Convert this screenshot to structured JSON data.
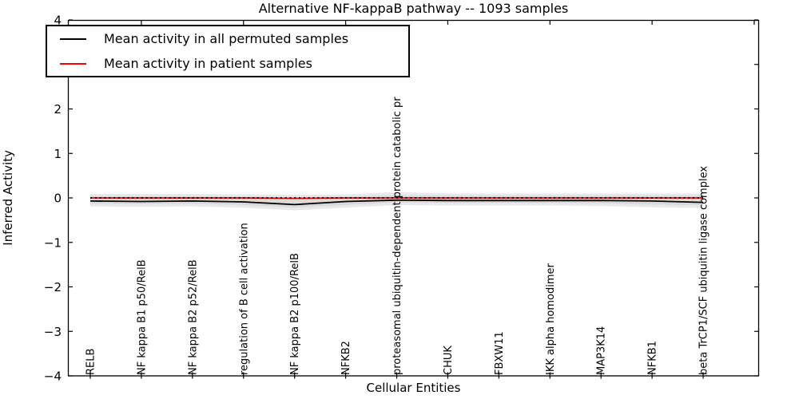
{
  "title": "Alternative NF-kappaB pathway -- 1093 samples",
  "legend": {
    "items": [
      {
        "label": "Mean activity in all permuted samples",
        "color": "#000000",
        "style": "solid"
      },
      {
        "label": "Mean activity in patient samples",
        "color": "#ff0000",
        "style": "solid"
      }
    ],
    "position": "upper left"
  },
  "axes": {
    "xlabel": "Cellular Entities",
    "ylabel": "Inferred Activity"
  },
  "chart_data": {
    "type": "line",
    "title": "Alternative NF-kappaB pathway -- 1093 samples",
    "xlabel": "Cellular Entities",
    "ylabel": "Inferred Activity",
    "ylim": [
      -4,
      4
    ],
    "yticks": [
      4,
      3,
      2,
      1,
      0,
      -1,
      -2,
      -3,
      -4
    ],
    "ytick_labels": [
      "4",
      "3",
      "2",
      "1",
      "0",
      "−1",
      "−2",
      "−3",
      "−4"
    ],
    "grid": false,
    "legend_position": "upper left",
    "categories": [
      "RELB",
      "NF kappa B1 p50/RelB",
      "NF kappa B2 p52/RelB",
      "regulation of B cell activation",
      "NF kappa B2 p100/RelB",
      "NFKB2",
      "proteasomal ubiquitin-dependent protein catabolic pr",
      "CHUK",
      "FBXW11",
      "IKK alpha homodimer",
      "MAP3K14",
      "NFKB1",
      "beta TrCP1/SCF ubiquitin ligase complex"
    ],
    "series": [
      {
        "name": "Mean activity in all permuted samples",
        "color": "#000000",
        "style": "solid",
        "values": [
          -0.07,
          -0.08,
          -0.07,
          -0.09,
          -0.15,
          -0.08,
          -0.05,
          -0.06,
          -0.06,
          -0.06,
          -0.06,
          -0.07,
          -0.1
        ]
      },
      {
        "name": "Mean activity in patient samples",
        "color": "#ff0000",
        "style": "solid",
        "values": [
          0,
          0,
          0,
          0,
          -0.01,
          0,
          0,
          0,
          0,
          0,
          0,
          0,
          0
        ]
      },
      {
        "name": "zero-reference-dotted",
        "color": "#000000",
        "style": "dotted",
        "values": [
          0,
          0,
          0,
          0,
          0,
          0,
          0,
          0,
          0,
          0,
          0,
          0,
          0
        ]
      }
    ],
    "bands": [
      {
        "name": "permuted-range-outer",
        "color": "#e9e9e9",
        "upper": [
          0.09,
          0.09,
          0.09,
          0.08,
          0.07,
          0.08,
          0.13,
          0.1,
          0.1,
          0.1,
          0.1,
          0.1,
          0.1
        ],
        "lower": [
          -0.19,
          -0.2,
          -0.19,
          -0.22,
          -0.28,
          -0.22,
          -0.16,
          -0.17,
          -0.17,
          -0.17,
          -0.18,
          -0.21,
          -0.23
        ]
      },
      {
        "name": "permuted-range-inner",
        "color": "#dadada",
        "upper": [
          0.04,
          0.04,
          0.04,
          0.03,
          0.02,
          0.03,
          0.06,
          0.05,
          0.05,
          0.05,
          0.05,
          0.05,
          0.05
        ],
        "lower": [
          -0.13,
          -0.14,
          -0.13,
          -0.16,
          -0.22,
          -0.16,
          -0.1,
          -0.11,
          -0.11,
          -0.11,
          -0.12,
          -0.15,
          -0.17
        ]
      }
    ]
  }
}
